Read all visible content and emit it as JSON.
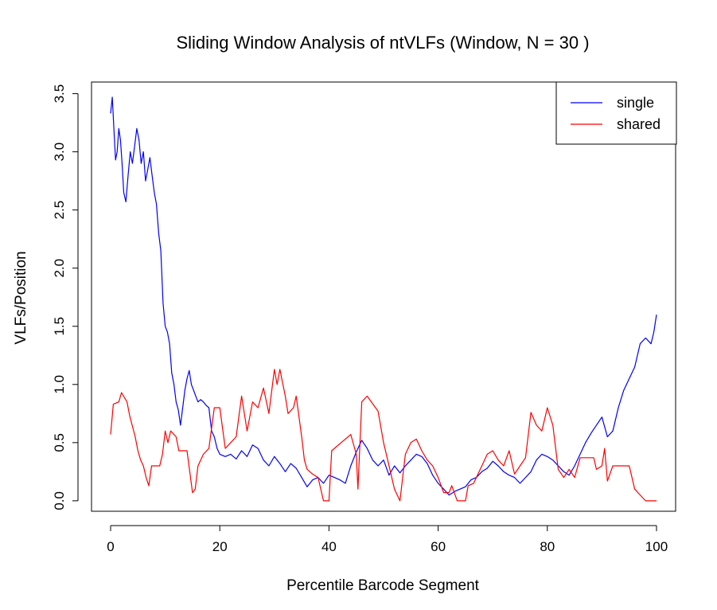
{
  "chart_data": {
    "type": "line",
    "title": "Sliding Window Analysis of ntVLFs (Window, N = 30 )",
    "xlabel": "Percentile Barcode Segment",
    "ylabel": "VLFs/Position",
    "xlim": [
      -3.5,
      103.5
    ],
    "ylim": [
      -0.09,
      3.6
    ],
    "xticks": [
      0,
      20,
      40,
      60,
      80,
      100
    ],
    "yticks": [
      0.0,
      0.5,
      1.0,
      1.5,
      2.0,
      2.5,
      3.0,
      3.5
    ],
    "xtick_labels": [
      "0",
      "20",
      "40",
      "60",
      "80",
      "100"
    ],
    "ytick_labels": [
      "0.0",
      "0.5",
      "1.0",
      "1.5",
      "2.0",
      "2.5",
      "3.0",
      "3.5"
    ],
    "legend": {
      "position": "top-right"
    },
    "series": [
      {
        "name": "single",
        "color": "#0000ff",
        "points": [
          [
            0,
            3.33
          ],
          [
            0.3,
            3.47
          ],
          [
            0.6,
            3.2
          ],
          [
            0.9,
            2.93
          ],
          [
            1.2,
            3.0
          ],
          [
            1.5,
            3.2
          ],
          [
            1.8,
            3.1
          ],
          [
            2.1,
            2.9
          ],
          [
            2.4,
            2.65
          ],
          [
            2.8,
            2.57
          ],
          [
            3.2,
            2.8
          ],
          [
            3.6,
            3.0
          ],
          [
            4.0,
            2.9
          ],
          [
            4.4,
            3.05
          ],
          [
            4.8,
            3.2
          ],
          [
            5.2,
            3.1
          ],
          [
            5.6,
            2.9
          ],
          [
            6.0,
            3.0
          ],
          [
            6.4,
            2.75
          ],
          [
            6.8,
            2.85
          ],
          [
            7.2,
            2.95
          ],
          [
            7.6,
            2.8
          ],
          [
            8.0,
            2.65
          ],
          [
            8.4,
            2.55
          ],
          [
            8.8,
            2.3
          ],
          [
            9.2,
            2.15
          ],
          [
            9.6,
            1.7
          ],
          [
            10.0,
            1.5
          ],
          [
            10.4,
            1.45
          ],
          [
            10.8,
            1.35
          ],
          [
            11.2,
            1.1
          ],
          [
            11.6,
            1.0
          ],
          [
            12.0,
            0.85
          ],
          [
            12.4,
            0.78
          ],
          [
            12.8,
            0.65
          ],
          [
            13.2,
            0.8
          ],
          [
            13.6,
            0.95
          ],
          [
            14.0,
            1.05
          ],
          [
            14.4,
            1.12
          ],
          [
            14.8,
            1.0
          ],
          [
            15.2,
            0.95
          ],
          [
            15.6,
            0.9
          ],
          [
            16.0,
            0.85
          ],
          [
            16.5,
            0.87
          ],
          [
            17.0,
            0.85
          ],
          [
            17.5,
            0.82
          ],
          [
            18.0,
            0.8
          ],
          [
            18.5,
            0.6
          ],
          [
            19.0,
            0.55
          ],
          [
            19.5,
            0.45
          ],
          [
            20.0,
            0.4
          ],
          [
            21,
            0.38
          ],
          [
            22,
            0.4
          ],
          [
            23,
            0.36
          ],
          [
            24,
            0.43
          ],
          [
            25,
            0.38
          ],
          [
            26,
            0.48
          ],
          [
            27,
            0.45
          ],
          [
            28,
            0.35
          ],
          [
            29,
            0.3
          ],
          [
            30,
            0.38
          ],
          [
            31,
            0.32
          ],
          [
            32,
            0.25
          ],
          [
            33,
            0.32
          ],
          [
            34,
            0.28
          ],
          [
            35,
            0.2
          ],
          [
            36,
            0.12
          ],
          [
            37,
            0.18
          ],
          [
            38,
            0.2
          ],
          [
            39,
            0.15
          ],
          [
            40,
            0.22
          ],
          [
            41,
            0.2
          ],
          [
            42,
            0.18
          ],
          [
            43,
            0.15
          ],
          [
            44,
            0.3
          ],
          [
            45,
            0.42
          ],
          [
            46,
            0.52
          ],
          [
            47,
            0.45
          ],
          [
            48,
            0.35
          ],
          [
            49,
            0.3
          ],
          [
            50,
            0.35
          ],
          [
            51,
            0.22
          ],
          [
            52,
            0.3
          ],
          [
            53,
            0.24
          ],
          [
            54,
            0.3
          ],
          [
            55,
            0.35
          ],
          [
            56,
            0.4
          ],
          [
            57,
            0.38
          ],
          [
            58,
            0.32
          ],
          [
            59,
            0.22
          ],
          [
            60,
            0.15
          ],
          [
            61,
            0.1
          ],
          [
            62,
            0.05
          ],
          [
            63,
            0.08
          ],
          [
            64,
            0.1
          ],
          [
            65,
            0.12
          ],
          [
            66,
            0.18
          ],
          [
            67,
            0.2
          ],
          [
            68,
            0.25
          ],
          [
            69,
            0.28
          ],
          [
            70,
            0.34
          ],
          [
            71,
            0.3
          ],
          [
            72,
            0.25
          ],
          [
            73,
            0.22
          ],
          [
            74,
            0.2
          ],
          [
            75,
            0.15
          ],
          [
            76,
            0.2
          ],
          [
            77,
            0.25
          ],
          [
            78,
            0.35
          ],
          [
            79,
            0.4
          ],
          [
            80,
            0.38
          ],
          [
            81,
            0.35
          ],
          [
            82,
            0.3
          ],
          [
            83,
            0.25
          ],
          [
            84,
            0.22
          ],
          [
            85,
            0.3
          ],
          [
            86,
            0.4
          ],
          [
            87,
            0.5
          ],
          [
            88,
            0.58
          ],
          [
            89,
            0.65
          ],
          [
            90,
            0.72
          ],
          [
            91,
            0.55
          ],
          [
            92,
            0.6
          ],
          [
            93,
            0.8
          ],
          [
            94,
            0.95
          ],
          [
            95,
            1.05
          ],
          [
            96,
            1.15
          ],
          [
            97,
            1.35
          ],
          [
            98,
            1.4
          ],
          [
            99,
            1.35
          ],
          [
            99.5,
            1.45
          ],
          [
            100,
            1.6
          ]
        ]
      },
      {
        "name": "shared",
        "color": "#ff0000",
        "points": [
          [
            0,
            0.57
          ],
          [
            0.5,
            0.83
          ],
          [
            1.5,
            0.85
          ],
          [
            2,
            0.93
          ],
          [
            3,
            0.85
          ],
          [
            3.5,
            0.73
          ],
          [
            4.5,
            0.55
          ],
          [
            5,
            0.43
          ],
          [
            5.5,
            0.35
          ],
          [
            6,
            0.3
          ],
          [
            6.5,
            0.2
          ],
          [
            7,
            0.13
          ],
          [
            7.5,
            0.3
          ],
          [
            9,
            0.3
          ],
          [
            9.5,
            0.4
          ],
          [
            10,
            0.6
          ],
          [
            10.5,
            0.5
          ],
          [
            11,
            0.6
          ],
          [
            12,
            0.55
          ],
          [
            12.5,
            0.43
          ],
          [
            14,
            0.43
          ],
          [
            15,
            0.07
          ],
          [
            15.5,
            0.1
          ],
          [
            16,
            0.3
          ],
          [
            17,
            0.4
          ],
          [
            18,
            0.45
          ],
          [
            19,
            0.8
          ],
          [
            20,
            0.8
          ],
          [
            21,
            0.45
          ],
          [
            22,
            0.5
          ],
          [
            23,
            0.55
          ],
          [
            24,
            0.9
          ],
          [
            25,
            0.6
          ],
          [
            26,
            0.85
          ],
          [
            27,
            0.8
          ],
          [
            28,
            0.97
          ],
          [
            29,
            0.75
          ],
          [
            30,
            1.13
          ],
          [
            30.5,
            1.0
          ],
          [
            31,
            1.13
          ],
          [
            32,
            0.9
          ],
          [
            32.5,
            0.75
          ],
          [
            33.5,
            0.8
          ],
          [
            34,
            0.9
          ],
          [
            35,
            0.55
          ],
          [
            35.5,
            0.35
          ],
          [
            36,
            0.27
          ],
          [
            37,
            0.23
          ],
          [
            38,
            0.2
          ],
          [
            39,
            0.0
          ],
          [
            40,
            0.0
          ],
          [
            40.5,
            0.43
          ],
          [
            44,
            0.57
          ],
          [
            45,
            0.4
          ],
          [
            45.3,
            0.1
          ],
          [
            46,
            0.85
          ],
          [
            47,
            0.9
          ],
          [
            49,
            0.77
          ],
          [
            50,
            0.5
          ],
          [
            51,
            0.3
          ],
          [
            52,
            0.1
          ],
          [
            53,
            0.0
          ],
          [
            54,
            0.4
          ],
          [
            55,
            0.5
          ],
          [
            56,
            0.53
          ],
          [
            57,
            0.43
          ],
          [
            58,
            0.35
          ],
          [
            59,
            0.3
          ],
          [
            60,
            0.2
          ],
          [
            61,
            0.07
          ],
          [
            62,
            0.07
          ],
          [
            62.5,
            0.13
          ],
          [
            63.5,
            0.0
          ],
          [
            65,
            0.0
          ],
          [
            65.5,
            0.13
          ],
          [
            66.5,
            0.15
          ],
          [
            68,
            0.3
          ],
          [
            69,
            0.4
          ],
          [
            70,
            0.43
          ],
          [
            71,
            0.35
          ],
          [
            72,
            0.3
          ],
          [
            73,
            0.43
          ],
          [
            74,
            0.23
          ],
          [
            75,
            0.3
          ],
          [
            76,
            0.37
          ],
          [
            77,
            0.76
          ],
          [
            78,
            0.65
          ],
          [
            79,
            0.6
          ],
          [
            80,
            0.8
          ],
          [
            81,
            0.65
          ],
          [
            82,
            0.27
          ],
          [
            83,
            0.2
          ],
          [
            84,
            0.27
          ],
          [
            85,
            0.2
          ],
          [
            86,
            0.37
          ],
          [
            87,
            0.37
          ],
          [
            88,
            0.37
          ],
          [
            88.5,
            0.37
          ],
          [
            89,
            0.27
          ],
          [
            90,
            0.3
          ],
          [
            90.5,
            0.45
          ],
          [
            91,
            0.17
          ],
          [
            92,
            0.3
          ],
          [
            95,
            0.3
          ],
          [
            96,
            0.1
          ],
          [
            97,
            0.05
          ],
          [
            98,
            0.0
          ],
          [
            100,
            0.0
          ]
        ]
      }
    ]
  }
}
